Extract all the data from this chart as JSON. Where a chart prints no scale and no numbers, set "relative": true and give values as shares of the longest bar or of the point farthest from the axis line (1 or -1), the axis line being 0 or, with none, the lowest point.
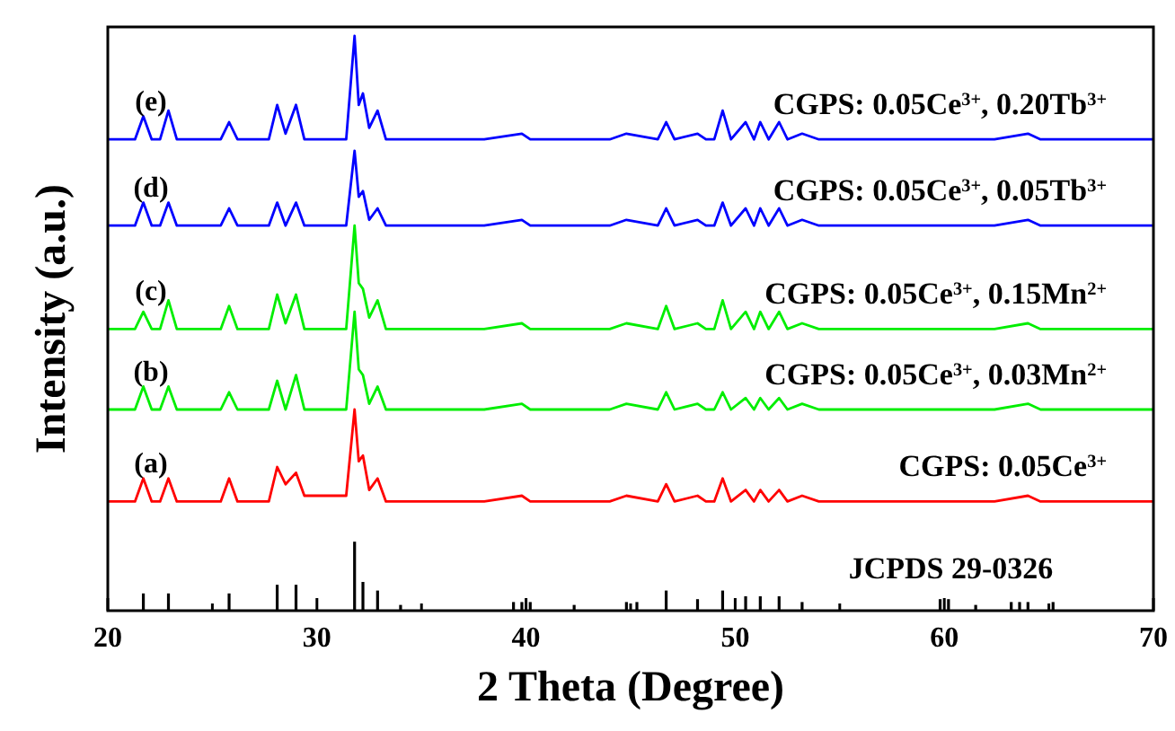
{
  "chart_data": {
    "type": "line",
    "relative": true,
    "xlabel": "2 Theta (Degree)",
    "ylabel": "Intensity (a.u.)",
    "xlim": [
      20,
      70
    ],
    "xticks": [
      20,
      {
        "value": 25,
        "label": null
      },
      30,
      {
        "value": 35,
        "label": null
      },
      40,
      {
        "value": 45,
        "label": null
      },
      50,
      {
        "value": 55,
        "label": null
      },
      60,
      {
        "value": 65,
        "label": null
      },
      70
    ],
    "x": [
      20,
      21.3,
      21.7,
      22.1,
      22.5,
      22.9,
      23.3,
      25.4,
      25.8,
      26.2,
      27.7,
      28.1,
      28.5,
      29.0,
      29.4,
      31.4,
      31.8,
      32.0,
      32.2,
      32.5,
      32.9,
      33.3,
      34,
      38,
      39.8,
      40.2,
      44,
      44.8,
      46.3,
      46.7,
      47.1,
      48.2,
      48.6,
      49.0,
      49.4,
      49.8,
      50.5,
      50.9,
      51.2,
      51.6,
      52.1,
      52.5,
      53.2,
      54,
      60,
      62.4,
      64,
      64.6,
      70
    ],
    "series": [
      {
        "name": "CGPS: 0.05Ce$^{3+}$, 0.20Tb$^{3+}$",
        "color": "#0000ff",
        "values": [
          0.82,
          0.82,
          0.86,
          0.82,
          0.82,
          0.87,
          0.82,
          0.82,
          0.85,
          0.82,
          0.82,
          0.88,
          0.83,
          0.88,
          0.82,
          0.82,
          1.0,
          0.88,
          0.9,
          0.84,
          0.87,
          0.82,
          0.82,
          0.82,
          0.83,
          0.82,
          0.82,
          0.83,
          0.82,
          0.85,
          0.82,
          0.83,
          0.82,
          0.82,
          0.87,
          0.82,
          0.85,
          0.82,
          0.85,
          0.82,
          0.85,
          0.82,
          0.83,
          0.82,
          0.82,
          0.82,
          0.83,
          0.82,
          0.82
        ]
      },
      {
        "name": "CGPS: 0.05Ce$^{3+}$, 0.05Tb$^{3+}$",
        "color": "#0000ff",
        "values": [
          0.67,
          0.67,
          0.71,
          0.67,
          0.67,
          0.71,
          0.67,
          0.67,
          0.7,
          0.67,
          0.67,
          0.71,
          0.67,
          0.71,
          0.67,
          0.67,
          0.8,
          0.72,
          0.73,
          0.68,
          0.7,
          0.67,
          0.67,
          0.67,
          0.68,
          0.67,
          0.67,
          0.68,
          0.67,
          0.7,
          0.67,
          0.68,
          0.67,
          0.67,
          0.71,
          0.67,
          0.7,
          0.67,
          0.7,
          0.67,
          0.7,
          0.67,
          0.68,
          0.67,
          0.67,
          0.67,
          0.68,
          0.67,
          0.67
        ]
      },
      {
        "name": "CGPS: 0.05Ce$^{3+}$, 0.15Mn$^{2+}$",
        "color": "#00ee00",
        "values": [
          0.49,
          0.49,
          0.52,
          0.49,
          0.49,
          0.54,
          0.49,
          0.49,
          0.53,
          0.49,
          0.49,
          0.55,
          0.5,
          0.55,
          0.49,
          0.49,
          0.67,
          0.57,
          0.56,
          0.51,
          0.54,
          0.49,
          0.49,
          0.49,
          0.5,
          0.49,
          0.49,
          0.5,
          0.49,
          0.53,
          0.49,
          0.5,
          0.49,
          0.49,
          0.54,
          0.49,
          0.52,
          0.49,
          0.52,
          0.49,
          0.52,
          0.49,
          0.5,
          0.49,
          0.49,
          0.49,
          0.5,
          0.49,
          0.49
        ]
      },
      {
        "name": "CGPS: 0.05Ce$^{3+}$, 0.03Mn$^{2+}$",
        "color": "#00ee00",
        "values": [
          0.35,
          0.35,
          0.39,
          0.35,
          0.35,
          0.39,
          0.35,
          0.35,
          0.38,
          0.35,
          0.35,
          0.4,
          0.35,
          0.41,
          0.35,
          0.35,
          0.52,
          0.42,
          0.41,
          0.36,
          0.39,
          0.35,
          0.35,
          0.35,
          0.36,
          0.35,
          0.35,
          0.36,
          0.35,
          0.38,
          0.35,
          0.36,
          0.35,
          0.35,
          0.38,
          0.35,
          0.37,
          0.35,
          0.37,
          0.35,
          0.37,
          0.35,
          0.36,
          0.35,
          0.35,
          0.35,
          0.36,
          0.35,
          0.35
        ]
      },
      {
        "name": "CGPS: 0.05Ce$^{3+}$",
        "color": "#ff0000",
        "values": [
          0.19,
          0.19,
          0.23,
          0.19,
          0.19,
          0.23,
          0.19,
          0.19,
          0.23,
          0.19,
          0.19,
          0.25,
          0.22,
          0.24,
          0.2,
          0.2,
          0.35,
          0.26,
          0.27,
          0.21,
          0.23,
          0.19,
          0.19,
          0.19,
          0.2,
          0.19,
          0.19,
          0.2,
          0.19,
          0.22,
          0.19,
          0.2,
          0.19,
          0.19,
          0.23,
          0.19,
          0.21,
          0.19,
          0.21,
          0.19,
          0.21,
          0.19,
          0.2,
          0.19,
          0.19,
          0.19,
          0.2,
          0.19,
          0.19
        ]
      },
      {
        "name": "JCPDS 29-0326",
        "type": "bar",
        "color": "#000000",
        "x": [
          21.7,
          22.9,
          25.8,
          28.1,
          29.0,
          31.8,
          32.2,
          32.9,
          34,
          39.4,
          39.8,
          40.2,
          42.3,
          44.8,
          45.3,
          46.7,
          48.2,
          49.4,
          50.5,
          51.2,
          52.1,
          53.2,
          59.8,
          60.2,
          61.5,
          63.2,
          63.6,
          64,
          65.2
        ],
        "values": [
          0.03,
          0.03,
          0.03,
          0.045,
          0.045,
          0.12,
          0.05,
          0.035,
          0.01,
          0.015,
          0.015,
          0.015,
          0.01,
          0.015,
          0.015,
          0.035,
          0.02,
          0.035,
          0.025,
          0.025,
          0.025,
          0.015,
          0.02,
          0.02,
          0.01,
          0.015,
          0.015,
          0.015,
          0.015
        ]
      }
    ],
    "annotations": [
      "(e)",
      "(d)",
      "(c)",
      "(b)",
      "(a)"
    ],
    "grid": false,
    "line_style": "solid",
    "marker": "none"
  }
}
